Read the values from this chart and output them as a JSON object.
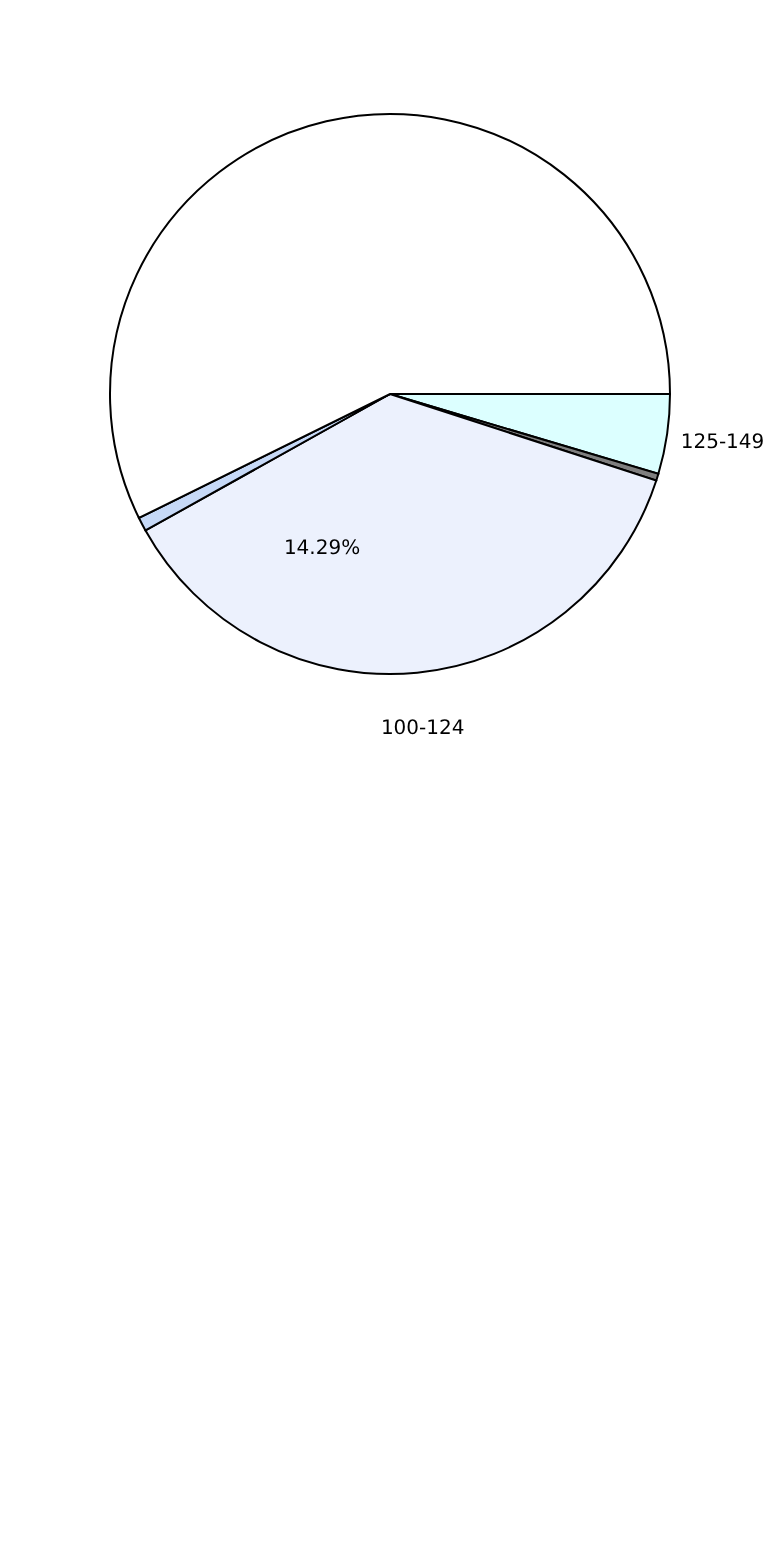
{
  "chart_data": {
    "type": "pie",
    "categories": [
      "125-149",
      null,
      "100-124",
      null,
      null
    ],
    "values": [
      4.6,
      0.4,
      36.9,
      0.8,
      57.3
    ],
    "colors": [
      "#dcffff",
      "#7f7f7f",
      "#ecf1fd",
      "#c6d9f7",
      "#ffffff"
    ],
    "annotations": [
      "14.29%"
    ],
    "legend": false
  }
}
